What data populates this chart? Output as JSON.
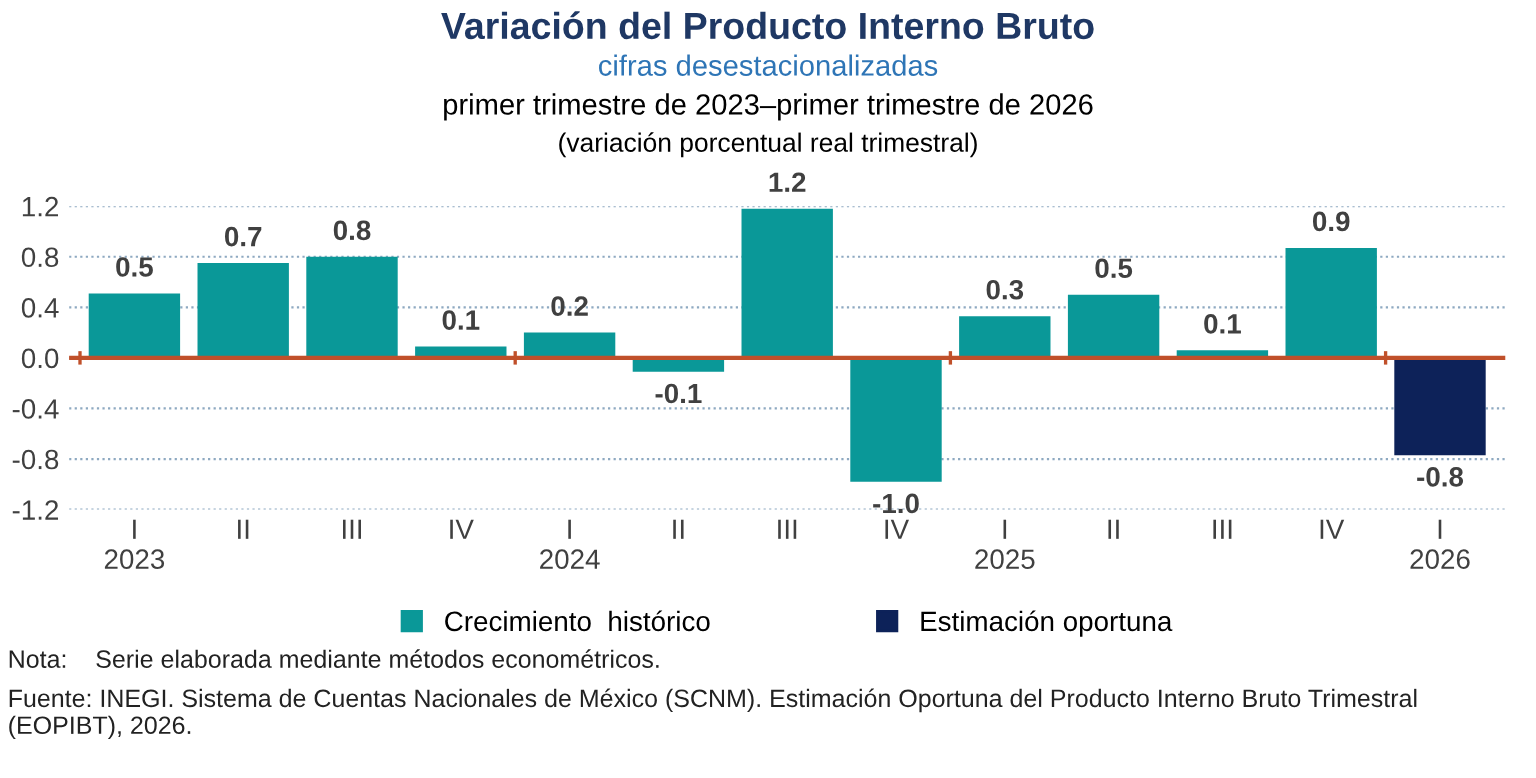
{
  "chart_data": {
    "type": "bar",
    "title": "Variación del Producto Interno Bruto",
    "subtitle": "cifras desestacionalizadas\nprimer trimestre de 2023–primer trimestre de 2026\n(variación porcentual real trimestral)",
    "categories": [
      "I\n2023",
      "II",
      "III",
      "IV",
      "I\n2024",
      "II",
      "III",
      "IV",
      "I\n2025",
      "II",
      "III",
      "IV",
      "I\n2026"
    ],
    "series": [
      {
        "name": "Crecimiento  histórico",
        "color": "#0a9898",
        "values": [
          0.51,
          0.75,
          0.8,
          0.09,
          0.2,
          -0.11,
          1.18,
          -0.98,
          0.33,
          0.5,
          0.06,
          0.87,
          null
        ],
        "value_labels": [
          "0.5",
          "0.7",
          "0.8",
          "0.1",
          "0.2",
          "-0.1",
          "1.2",
          "-1.0",
          "0.3",
          "0.5",
          "0.1",
          "0.9",
          null
        ]
      },
      {
        "name": "Estimación oportuna",
        "color": "#0d2259",
        "values": [
          null,
          null,
          null,
          null,
          null,
          null,
          null,
          null,
          null,
          null,
          null,
          null,
          -0.77
        ],
        "value_labels": [
          null,
          null,
          null,
          null,
          null,
          null,
          null,
          null,
          null,
          null,
          null,
          null,
          "-0.8"
        ]
      }
    ],
    "ylim": [
      -1.2,
      1.2
    ],
    "ref_lines": [
      {
        "axis": "y",
        "value": 0,
        "color": "#c0502a"
      }
    ],
    "yticks": [
      {
        "value": -1.2,
        "label": "-1.2"
      },
      {
        "value": -0.8,
        "label": "-0.8"
      },
      {
        "value": -0.4,
        "label": "-0.4"
      },
      {
        "value": 0.0,
        "label": "0.0"
      },
      0.4,
      0.8,
      1.2
    ],
    "grid": "y",
    "legend": "bottom",
    "annotations": [
      "Nota:    Serie elaborada mediante métodos econométricos.",
      "Fuente: INEGI. Sistema de Cuentas Nacionales de México (SCNM). Estimación Oportuna del Producto Interno Bruto Trimestral (EOPIBT), 2026."
    ]
  }
}
